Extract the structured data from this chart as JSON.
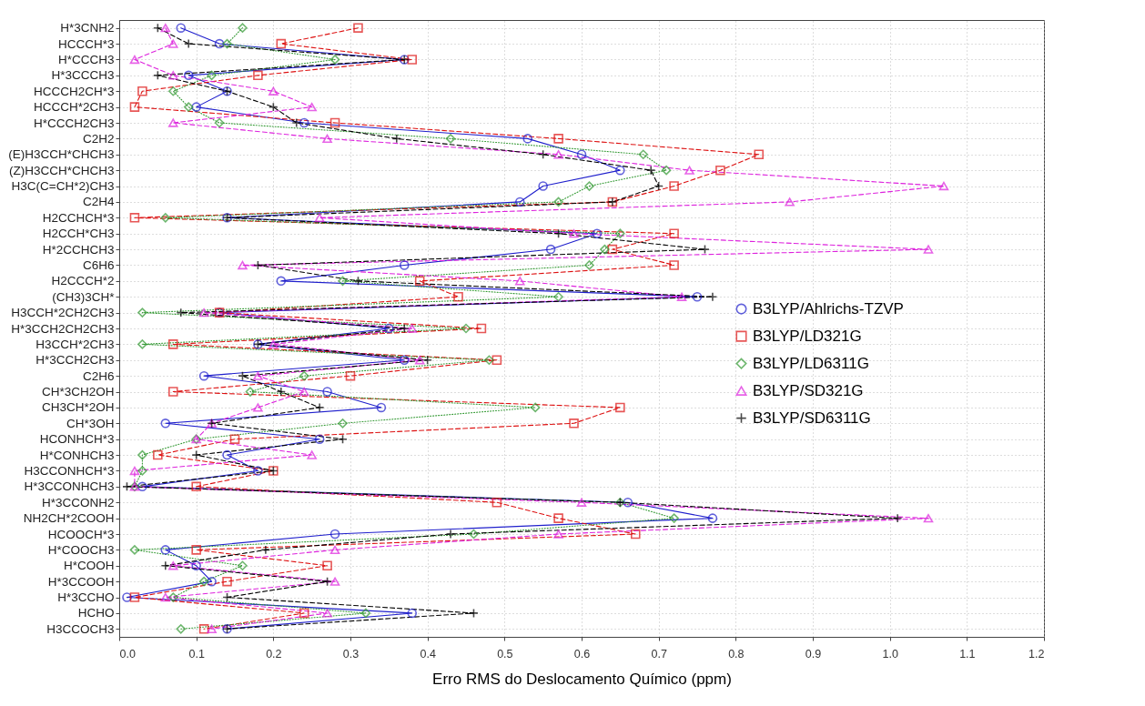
{
  "chart_data": {
    "type": "line",
    "orientation": "horizontal",
    "xlabel": "Erro RMS do Deslocamento Químico (ppm)",
    "categories": [
      "H*3CNH2",
      "HCCCH*3",
      "H*CCCH3",
      "H*3CCCH3",
      "HCCCH2CH*3",
      "HCCCH*2CH3",
      "H*CCCH2CH3",
      "C2H2",
      "(E)H3CCH*CHCH3",
      "(Z)H3CCH*CHCH3",
      "H3C(C=CH*2)CH3",
      "C2H4",
      "H2CCHCH*3",
      "H2CCH*CH3",
      "H*2CCHCH3",
      "C6H6",
      "H2CCCH*2",
      "(CH3)3CH*",
      "H3CCH*2CH2CH3",
      "H*3CCH2CH2CH3",
      "H3CCH*2CH3",
      "H*3CCH2CH3",
      "C2H6",
      "CH*3CH2OH",
      "CH3CH*2OH",
      "CH*3OH",
      "HCONHCH*3",
      "H*CONHCH3",
      "H3CCONHCH*3",
      "H*3CCONHCH3",
      "H*3CCONH2",
      "NH2CH*2COOH",
      "HCOOCH*3",
      "H*COOCH3",
      "H*COOH",
      "H*3CCOOH",
      "H*3CCHO",
      "HCHO",
      "H3CCOCH3"
    ],
    "series": [
      {
        "name": "B3LYP/Ahlrichs-TZVP",
        "color": "#1f1fcc",
        "marker": "circle",
        "line_style": "solid",
        "values": [
          0.08,
          0.13,
          0.37,
          0.09,
          0.14,
          0.1,
          0.24,
          0.53,
          0.6,
          0.65,
          0.55,
          0.52,
          0.14,
          0.62,
          0.56,
          0.37,
          0.21,
          0.75,
          0.13,
          0.35,
          0.18,
          0.37,
          0.11,
          0.27,
          0.34,
          0.06,
          0.26,
          0.14,
          0.18,
          0.03,
          0.66,
          0.77,
          0.28,
          0.06,
          0.1,
          0.12,
          0.01,
          0.38,
          0.14
        ]
      },
      {
        "name": "B3LYP/LD321G",
        "color": "#dd1111",
        "marker": "square",
        "line_style": "dashed",
        "values": [
          0.31,
          0.21,
          0.38,
          0.18,
          0.03,
          0.02,
          0.28,
          0.57,
          0.83,
          0.78,
          0.72,
          0.64,
          0.02,
          0.72,
          0.64,
          0.72,
          0.39,
          0.44,
          0.13,
          0.47,
          0.07,
          0.49,
          0.3,
          0.07,
          0.65,
          0.59,
          0.15,
          0.05,
          0.2,
          0.1,
          0.49,
          0.57,
          0.67,
          0.1,
          0.27,
          0.14,
          0.02,
          0.24,
          0.11
        ]
      },
      {
        "name": "B3LYP/LD6311G",
        "color": "#339933",
        "marker": "diamond",
        "line_style": "dotted",
        "values": [
          0.16,
          0.14,
          0.28,
          0.12,
          0.07,
          0.09,
          0.13,
          0.43,
          0.68,
          0.71,
          0.61,
          0.57,
          0.06,
          0.65,
          0.63,
          0.61,
          0.29,
          0.57,
          0.03,
          0.45,
          0.03,
          0.48,
          0.24,
          0.17,
          0.54,
          0.29,
          0.1,
          0.03,
          0.03,
          0.02,
          0.65,
          0.72,
          0.46,
          0.02,
          0.16,
          0.11,
          0.07,
          0.32,
          0.08
        ]
      },
      {
        "name": "B3LYP/SD321G",
        "color": "#dd22dd",
        "marker": "triangle",
        "line_style": "dashed",
        "values": [
          0.06,
          0.07,
          0.02,
          0.07,
          0.2,
          0.25,
          0.07,
          0.27,
          0.57,
          0.74,
          1.07,
          0.87,
          0.26,
          0.59,
          1.05,
          0.16,
          0.52,
          0.73,
          0.11,
          0.38,
          0.2,
          0.39,
          0.18,
          0.24,
          0.18,
          0.12,
          0.1,
          0.25,
          0.02,
          0.02,
          0.6,
          1.05,
          0.57,
          0.28,
          0.07,
          0.28,
          0.06,
          0.27,
          0.12
        ]
      },
      {
        "name": "B3LYP/SD6311G",
        "color": "#000000",
        "marker": "cross",
        "line_style": "dashed",
        "values": [
          0.05,
          0.09,
          0.37,
          0.05,
          0.14,
          0.2,
          0.23,
          0.36,
          0.55,
          0.69,
          0.7,
          0.64,
          0.14,
          0.57,
          0.76,
          0.18,
          0.31,
          0.77,
          0.08,
          0.37,
          0.18,
          0.4,
          0.16,
          0.21,
          0.26,
          0.12,
          0.29,
          0.1,
          0.2,
          0.01,
          0.65,
          1.01,
          0.43,
          0.19,
          0.06,
          0.27,
          0.14,
          0.46,
          0.14
        ]
      }
    ],
    "xlim": [
      0,
      1.2
    ],
    "xticks": [
      {
        "value": 0,
        "label": "0.0"
      },
      0.1,
      0.2,
      0.3,
      0.4,
      0.5,
      0.6,
      0.7,
      0.8,
      0.9,
      {
        "value": 1,
        "label": "1.0"
      },
      1.1,
      1.2
    ],
    "grid": true,
    "legend": "right"
  }
}
